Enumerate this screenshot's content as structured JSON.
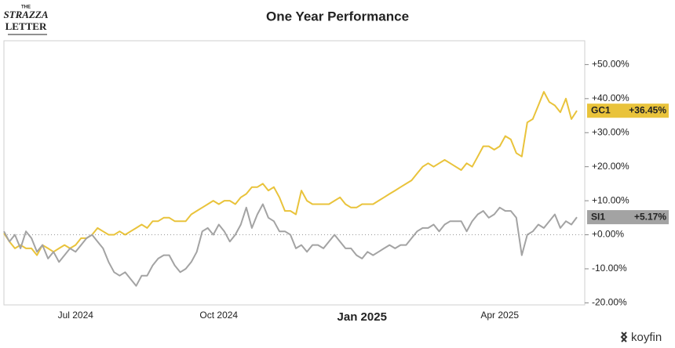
{
  "chart_data": {
    "type": "line",
    "title": "One Year Performance",
    "logo": [
      "THE",
      "STRAZZA",
      "LETTER"
    ],
    "watermark": "koyfin",
    "categories": [
      null,
      null,
      null,
      null,
      null,
      null,
      null,
      null,
      null,
      null,
      null,
      null,
      null,
      "Jul 2024",
      null,
      null,
      null,
      null,
      null,
      null,
      null,
      null,
      null,
      null,
      null,
      null,
      null,
      null,
      null,
      null,
      null,
      null,
      null,
      null,
      null,
      null,
      null,
      null,
      null,
      "Oct 2024",
      null,
      null,
      null,
      null,
      null,
      null,
      null,
      null,
      null,
      null,
      null,
      null,
      null,
      null,
      null,
      null,
      null,
      null,
      null,
      null,
      null,
      null,
      null,
      null,
      null,
      "Jan 2025",
      null,
      null,
      null,
      null,
      null,
      null,
      null,
      null,
      null,
      null,
      null,
      null,
      null,
      null,
      null,
      null,
      null,
      null,
      null,
      null,
      null,
      null,
      null,
      null,
      "Apr 2025",
      null,
      null,
      null,
      null,
      null,
      null,
      null,
      null,
      null,
      null,
      null,
      null,
      null,
      null
    ],
    "series": [
      {
        "name": "GC1",
        "color": "#e9c33b",
        "values": [
          0.5,
          -2,
          -4,
          -3,
          -4,
          -4,
          -6,
          -3,
          -4,
          -5,
          -4,
          -3,
          -4,
          -3,
          -1,
          -1,
          0,
          2,
          1,
          0,
          0,
          1,
          0,
          1,
          2,
          3,
          2,
          4,
          4,
          5,
          5,
          4,
          4,
          4,
          6,
          7,
          8,
          9,
          10,
          9,
          10,
          10,
          9,
          11,
          12,
          14,
          14,
          15,
          13,
          14,
          11,
          7,
          7,
          6,
          13,
          10,
          9,
          9,
          9,
          9,
          10,
          11,
          9,
          8,
          8,
          9,
          9,
          9,
          10,
          11,
          12,
          13,
          14,
          15,
          16,
          18,
          20,
          21,
          20,
          21,
          22,
          21,
          20,
          19,
          21,
          20,
          23,
          26,
          26,
          25,
          26,
          29,
          28,
          24,
          23,
          33,
          34,
          38,
          42,
          39,
          38,
          36,
          40,
          34,
          36.45
        ],
        "value_labels": [
          null,
          null,
          null,
          null,
          null,
          null,
          null,
          null,
          null,
          null,
          null,
          null,
          null,
          null,
          null,
          null,
          null,
          null,
          null,
          null,
          null,
          null,
          null,
          null,
          null,
          null,
          null,
          null,
          null,
          null,
          null,
          null,
          null,
          null,
          null,
          null,
          null,
          null,
          null,
          null,
          null,
          null,
          null,
          null,
          null,
          null,
          null,
          null,
          null,
          null,
          null,
          null,
          null,
          null,
          null,
          null,
          null,
          null,
          null,
          null,
          null,
          null,
          null,
          null,
          null,
          null,
          null,
          null,
          null,
          null,
          null,
          null,
          null,
          null,
          null,
          null,
          null,
          null,
          null,
          null,
          null,
          null,
          null,
          null,
          null,
          null,
          null,
          null,
          null,
          null,
          null,
          null,
          null,
          null,
          null,
          null,
          null,
          null,
          null,
          null,
          null,
          null,
          null,
          null,
          "+36.45%"
        ]
      },
      {
        "name": "SI1",
        "color": "#a3a3a3",
        "values": [
          1,
          -2,
          0,
          -4,
          1,
          -1,
          -5,
          -3,
          -7,
          -5,
          -8,
          -6,
          -4,
          -5,
          -3,
          -1,
          0,
          -2,
          -4,
          -8,
          -11,
          -12,
          -11,
          -13,
          -15,
          -12,
          -12,
          -9,
          -7,
          -6,
          -6,
          -9,
          -11,
          -10,
          -8,
          -5,
          1,
          2,
          0,
          3,
          1,
          -2,
          0,
          3,
          8,
          2,
          6,
          9,
          5,
          4,
          1,
          1,
          0,
          -4,
          -3,
          -5,
          -3,
          -3,
          -4,
          -2,
          0,
          -2,
          -4,
          -4,
          -6,
          -7,
          -5,
          -6,
          -5,
          -4,
          -3,
          -4,
          -3,
          -3,
          -1,
          1,
          2,
          2,
          3,
          1,
          3,
          4,
          4,
          4,
          1,
          4,
          6,
          7,
          5,
          6,
          8,
          7,
          7,
          5,
          -6,
          0,
          1,
          3,
          2,
          4,
          6,
          2,
          4,
          3,
          5.17
        ],
        "value_labels": [
          null,
          null,
          null,
          null,
          null,
          null,
          null,
          null,
          null,
          null,
          null,
          null,
          null,
          null,
          null,
          null,
          null,
          null,
          null,
          null,
          null,
          null,
          null,
          null,
          null,
          null,
          null,
          null,
          null,
          null,
          null,
          null,
          null,
          null,
          null,
          null,
          null,
          null,
          null,
          null,
          null,
          null,
          null,
          null,
          null,
          null,
          null,
          null,
          null,
          null,
          null,
          null,
          null,
          null,
          null,
          null,
          null,
          null,
          null,
          null,
          null,
          null,
          null,
          null,
          null,
          null,
          null,
          null,
          null,
          null,
          null,
          null,
          null,
          null,
          null,
          null,
          null,
          null,
          null,
          null,
          null,
          null,
          null,
          null,
          null,
          null,
          null,
          null,
          null,
          null,
          null,
          null,
          null,
          null,
          null,
          null,
          null,
          null,
          null,
          null,
          null,
          null,
          null,
          null,
          "+5.17%"
        ]
      }
    ],
    "ylim": [
      -20.6,
      57
    ],
    "yticks": [
      {
        "value": -20,
        "label": "-20.00%"
      },
      {
        "value": -10,
        "label": "-10.00%"
      },
      {
        "value": 0,
        "label": "+0.00%"
      },
      {
        "value": 10,
        "label": "+10.00%"
      },
      {
        "value": 20,
        "label": "+20.00%"
      },
      {
        "value": 30,
        "label": "+30.00%"
      },
      {
        "value": 40,
        "label": "+40.00%"
      },
      {
        "value": 50,
        "label": "+50.00%"
      }
    ],
    "zero_line": true
  }
}
